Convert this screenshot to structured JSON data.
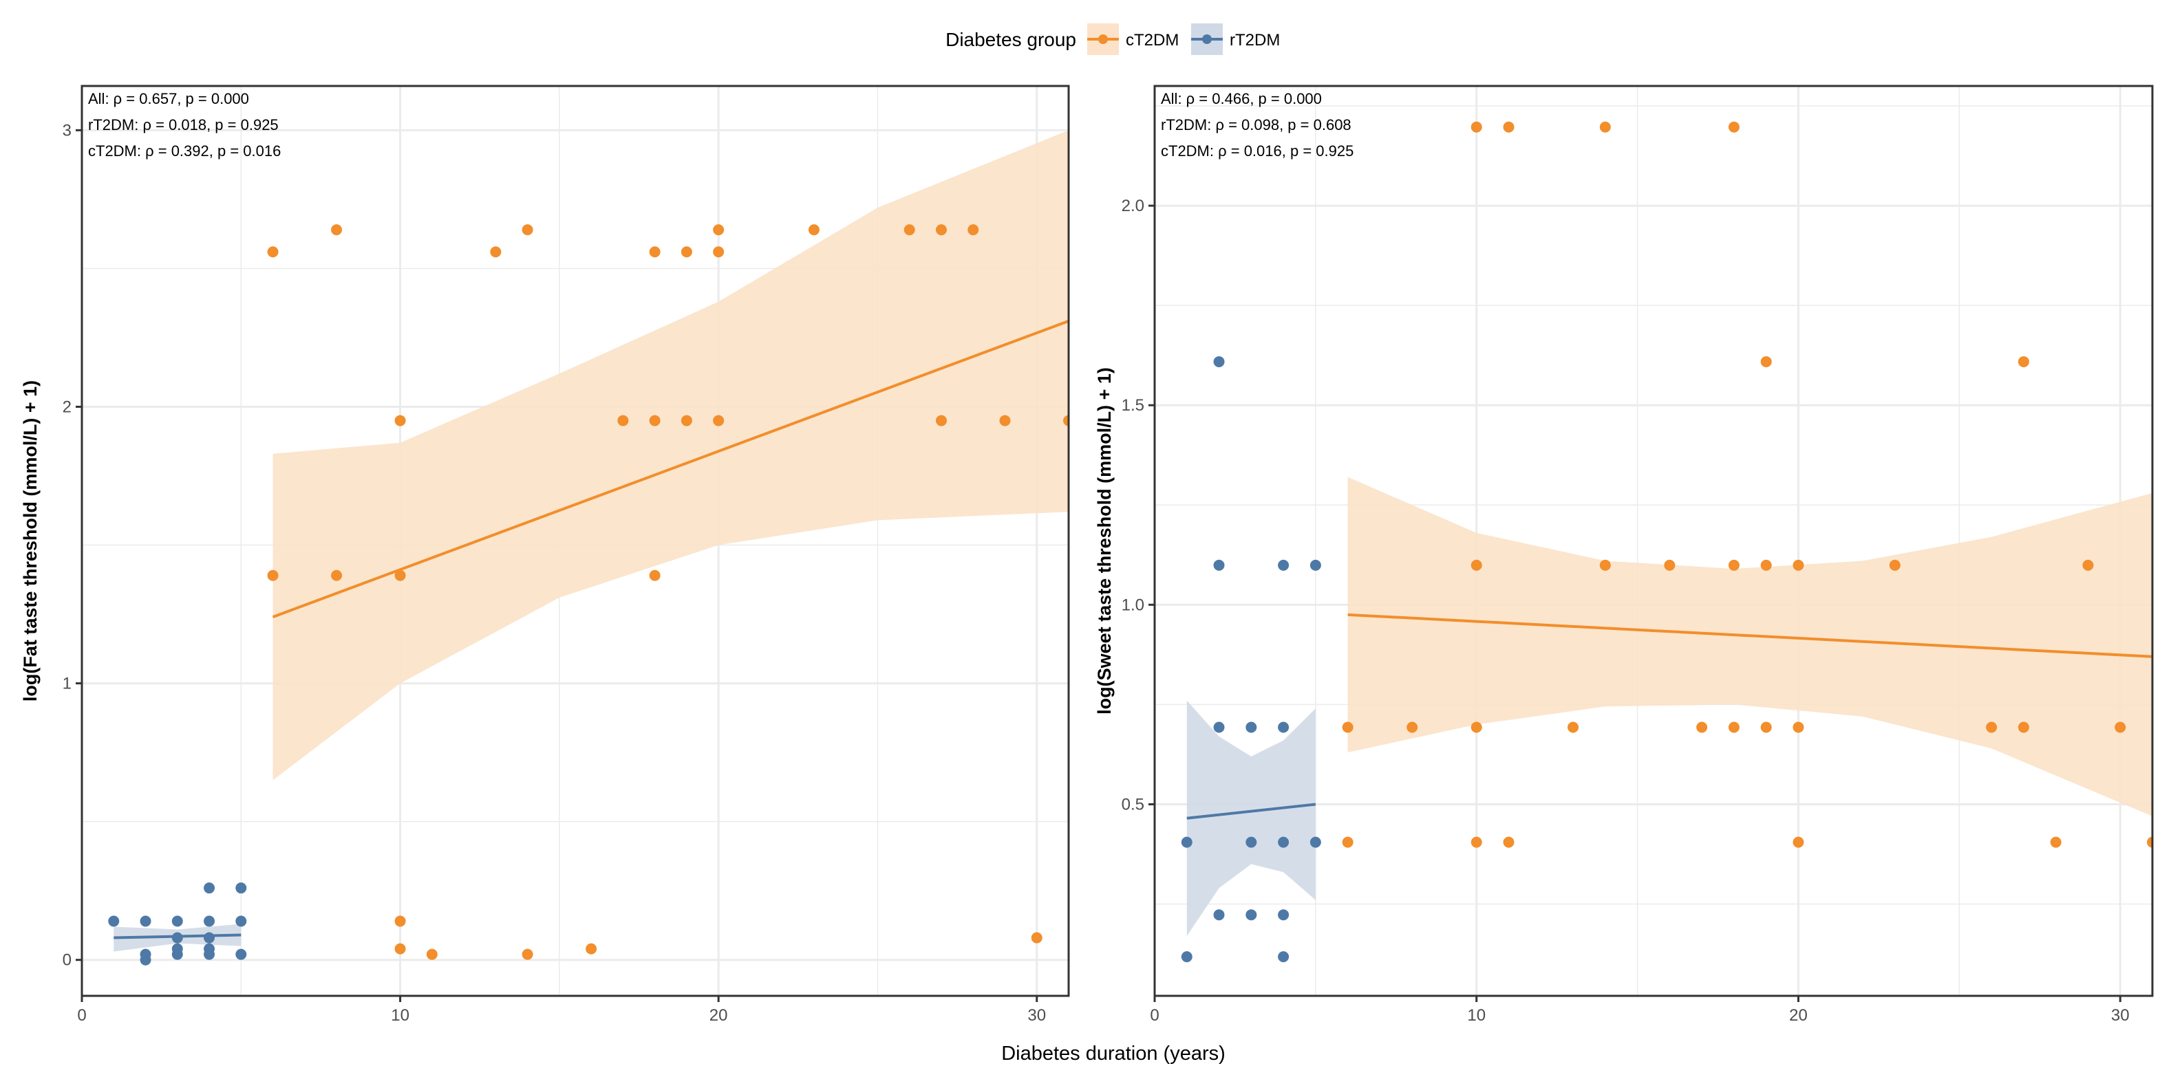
{
  "legend": {
    "title": "Diabetes group",
    "position": "top",
    "entries": [
      {
        "label": "cT2DM",
        "color": "#F28E2B",
        "ribbon": "#FBE2C8"
      },
      {
        "label": "rT2DM",
        "color": "#4E79A7",
        "ribbon": "#D0DAE6"
      }
    ]
  },
  "xlabel_shared": "Diabetes duration (years)",
  "chart_data": [
    {
      "type": "scatter",
      "ylabel": "log(Fat taste threshold (mmol/L) + 1)",
      "xlim": [
        0,
        31
      ],
      "ylim": [
        -0.13,
        3.16
      ],
      "xticks": [
        0,
        10,
        20,
        30
      ],
      "yticks": [
        0,
        1,
        2,
        3
      ],
      "grid": true,
      "annotations": [
        "All: ρ = 0.657, p = 0.000",
        "rT2DM: ρ = 0.018, p = 0.925",
        "cT2DM: ρ = 0.392, p = 0.016"
      ],
      "series": [
        {
          "name": "rT2DM",
          "points": [
            [
              1,
              0.14
            ],
            [
              2,
              0.14
            ],
            [
              2,
              0.02
            ],
            [
              2,
              0.0
            ],
            [
              3,
              0.14
            ],
            [
              3,
              0.08
            ],
            [
              3,
              0.04
            ],
            [
              3,
              0.02
            ],
            [
              4,
              0.26
            ],
            [
              4,
              0.14
            ],
            [
              4,
              0.08
            ],
            [
              4,
              0.04
            ],
            [
              4,
              0.02
            ],
            [
              5,
              0.26
            ],
            [
              5,
              0.14
            ],
            [
              5,
              0.02
            ]
          ],
          "fit": [
            [
              1,
              0.08
            ],
            [
              5,
              0.09
            ]
          ],
          "ribbon": [
            [
              1,
              0.03,
              0.12
            ],
            [
              3,
              0.06,
              0.11
            ],
            [
              5,
              0.05,
              0.13
            ]
          ]
        },
        {
          "name": "cT2DM",
          "points": [
            [
              6,
              2.56
            ],
            [
              8,
              2.64
            ],
            [
              13,
              2.56
            ],
            [
              14,
              2.64
            ],
            [
              18,
              2.56
            ],
            [
              19,
              2.56
            ],
            [
              20,
              2.56
            ],
            [
              20,
              2.64
            ],
            [
              23,
              2.64
            ],
            [
              26,
              2.64
            ],
            [
              27,
              2.64
            ],
            [
              28,
              2.64
            ],
            [
              10,
              1.95
            ],
            [
              17,
              1.95
            ],
            [
              18,
              1.95
            ],
            [
              19,
              1.95
            ],
            [
              20,
              1.95
            ],
            [
              27,
              1.95
            ],
            [
              29,
              1.95
            ],
            [
              31,
              1.95
            ],
            [
              6,
              1.39
            ],
            [
              8,
              1.39
            ],
            [
              10,
              1.39
            ],
            [
              18,
              1.39
            ],
            [
              10,
              0.14
            ],
            [
              10,
              0.04
            ],
            [
              11,
              0.02
            ],
            [
              14,
              0.02
            ],
            [
              16,
              0.04
            ],
            [
              30,
              0.08
            ]
          ],
          "fit": [
            [
              6,
              1.24
            ],
            [
              31,
              2.31
            ]
          ],
          "ribbon": [
            [
              6,
              0.65,
              1.83
            ],
            [
              10,
              1.0,
              1.87
            ],
            [
              15,
              1.31,
              2.12
            ],
            [
              20,
              1.5,
              2.38
            ],
            [
              25,
              1.59,
              2.72
            ],
            [
              31,
              1.62,
              3.0
            ]
          ]
        }
      ]
    },
    {
      "type": "scatter",
      "ylabel": "log(Sweet taste threshold (mmol/L) + 1)",
      "xlim": [
        0,
        31
      ],
      "ylim": [
        0.02,
        2.3
      ],
      "xticks": [
        0,
        10,
        20,
        30
      ],
      "yticks": [
        0.5,
        1.0,
        1.5,
        2.0
      ],
      "ytick_labels": [
        "0.5",
        "1.0",
        "1.5",
        "2.0"
      ],
      "grid": true,
      "annotations": [
        "All: ρ = 0.466, p = 0.000",
        "rT2DM: ρ = 0.098, p = 0.608",
        "cT2DM: ρ = 0.016, p = 0.925"
      ],
      "series": [
        {
          "name": "rT2DM",
          "points": [
            [
              1,
              0.405
            ],
            [
              1,
              0.118
            ],
            [
              2,
              1.609
            ],
            [
              2,
              1.099
            ],
            [
              2,
              0.693
            ],
            [
              2,
              0.223
            ],
            [
              3,
              0.693
            ],
            [
              3,
              0.405
            ],
            [
              3,
              0.223
            ],
            [
              4,
              1.099
            ],
            [
              4,
              0.693
            ],
            [
              4,
              0.405
            ],
            [
              4,
              0.223
            ],
            [
              4,
              0.118
            ],
            [
              5,
              1.099
            ],
            [
              5,
              0.405
            ]
          ],
          "fit": [
            [
              1,
              0.465
            ],
            [
              5,
              0.5
            ]
          ],
          "ribbon": [
            [
              1,
              0.17,
              0.76
            ],
            [
              2,
              0.29,
              0.67
            ],
            [
              3,
              0.35,
              0.62
            ],
            [
              4,
              0.33,
              0.66
            ],
            [
              5,
              0.26,
              0.74
            ]
          ]
        },
        {
          "name": "cT2DM",
          "points": [
            [
              10,
              2.197
            ],
            [
              11,
              2.197
            ],
            [
              14,
              2.197
            ],
            [
              18,
              2.197
            ],
            [
              19,
              1.609
            ],
            [
              27,
              1.609
            ],
            [
              10,
              1.099
            ],
            [
              14,
              1.099
            ],
            [
              16,
              1.099
            ],
            [
              18,
              1.099
            ],
            [
              19,
              1.099
            ],
            [
              20,
              1.099
            ],
            [
              23,
              1.099
            ],
            [
              29,
              1.099
            ],
            [
              6,
              0.693
            ],
            [
              8,
              0.693
            ],
            [
              10,
              0.693
            ],
            [
              13,
              0.693
            ],
            [
              17,
              0.693
            ],
            [
              18,
              0.693
            ],
            [
              19,
              0.693
            ],
            [
              20,
              0.693
            ],
            [
              26,
              0.693
            ],
            [
              27,
              0.693
            ],
            [
              30,
              0.693
            ],
            [
              6,
              0.405
            ],
            [
              10,
              0.405
            ],
            [
              11,
              0.405
            ],
            [
              20,
              0.405
            ],
            [
              28,
              0.405
            ],
            [
              31,
              0.405
            ]
          ],
          "fit": [
            [
              6,
              0.975
            ],
            [
              31,
              0.87
            ]
          ],
          "ribbon": [
            [
              6,
              0.63,
              1.32
            ],
            [
              10,
              0.7,
              1.18
            ],
            [
              14,
              0.745,
              1.11
            ],
            [
              18,
              0.75,
              1.09
            ],
            [
              22,
              0.72,
              1.11
            ],
            [
              26,
              0.64,
              1.17
            ],
            [
              31,
              0.47,
              1.28
            ]
          ]
        }
      ]
    }
  ]
}
